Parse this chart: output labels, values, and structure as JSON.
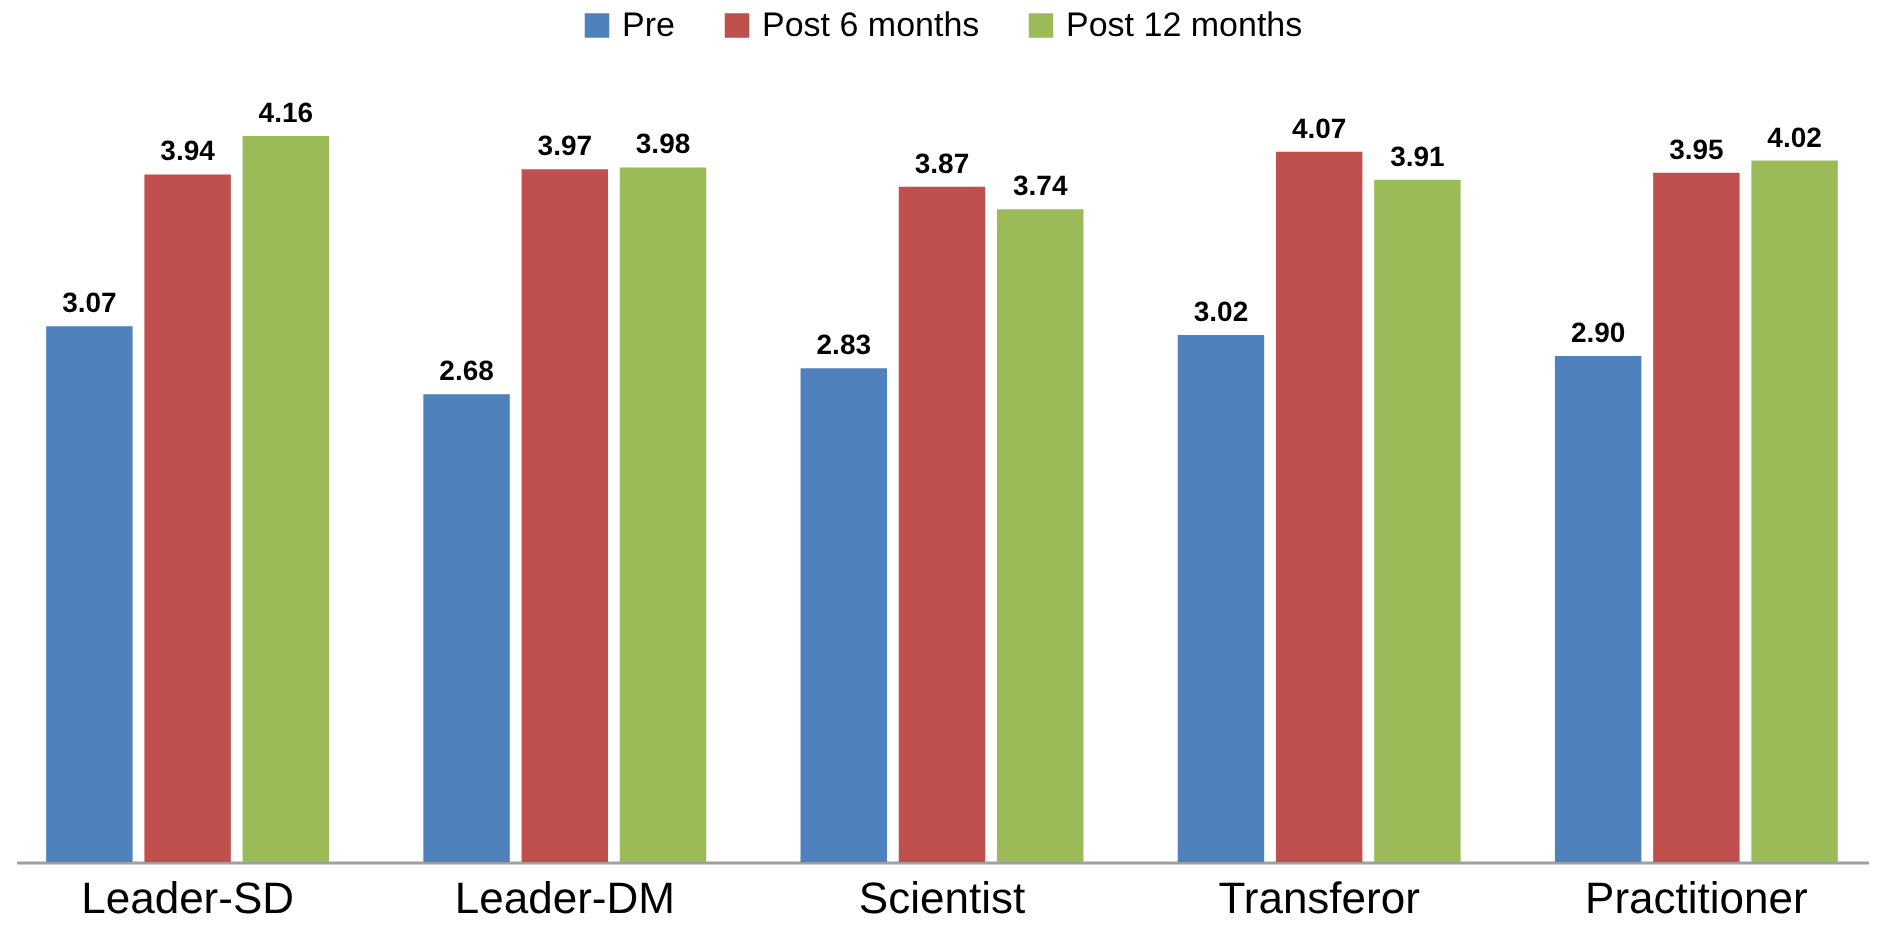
{
  "chart_data": {
    "type": "bar",
    "categories": [
      "Leader-SD",
      "Leader-DM",
      "Scientist",
      "Transferor",
      "Practitioner"
    ],
    "series": [
      {
        "name": "Pre",
        "color": "#4f81bd",
        "values": [
          3.07,
          2.68,
          2.83,
          3.02,
          2.9
        ],
        "value_labels": [
          "3.07",
          "2.68",
          "2.83",
          "3.02",
          "2.90"
        ]
      },
      {
        "name": "Post 6 months",
        "color": "#c0504d",
        "values": [
          3.94,
          3.97,
          3.87,
          4.07,
          3.95
        ],
        "value_labels": [
          "3.94",
          "3.97",
          "3.87",
          "4.07",
          "3.95"
        ]
      },
      {
        "name": "Post 12 months",
        "color": "#9bbb59",
        "values": [
          4.16,
          3.98,
          3.74,
          3.91,
          4.02
        ],
        "value_labels": [
          "4.16",
          "3.98",
          "3.74",
          "3.91",
          "4.02"
        ]
      }
    ],
    "legend": "top"
  }
}
